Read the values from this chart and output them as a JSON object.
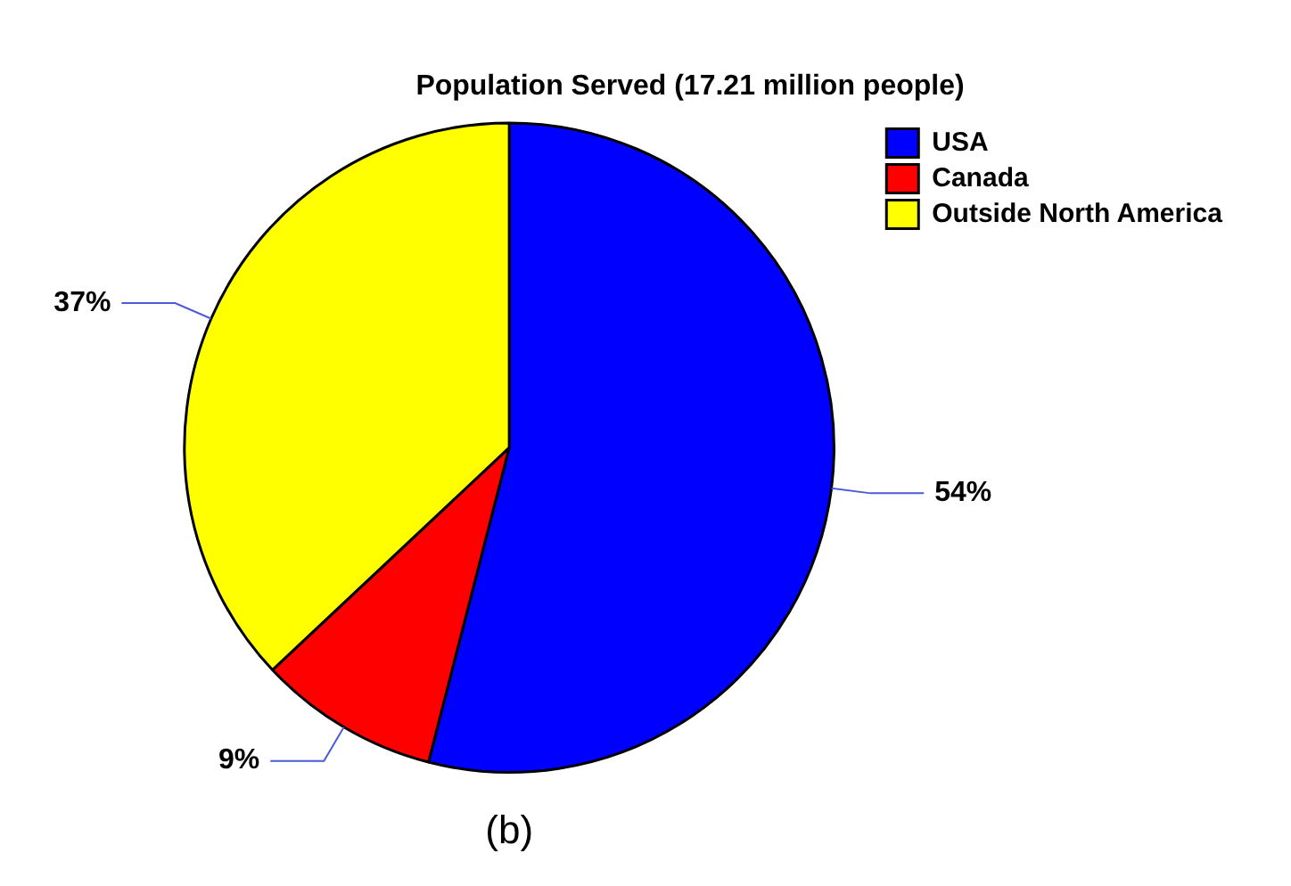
{
  "chart_data": {
    "type": "pie",
    "title": "Population Served (17.21 million people)",
    "categories": [
      "USA",
      "Canada",
      "Outside North America"
    ],
    "values": [
      54,
      9,
      37
    ],
    "colors": [
      "#0000ff",
      "#ff0000",
      "#ffff00"
    ],
    "value_labels": [
      "54%",
      "9%",
      "37%"
    ],
    "legend": "top right",
    "annotations": [
      "(b)"
    ]
  }
}
